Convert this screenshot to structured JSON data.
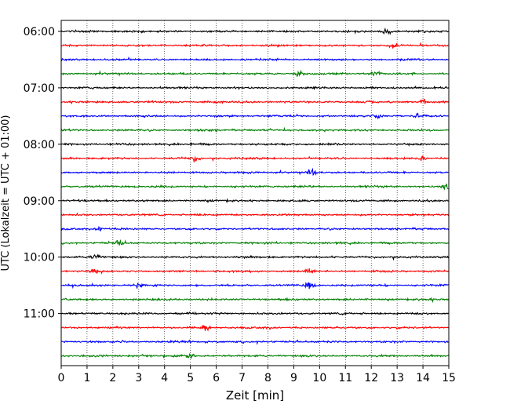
{
  "chart_data": {
    "type": "line",
    "title": "",
    "xlabel": "Zeit  [min]",
    "ylabel": "UTC (Lokalzeit = UTC + 01:00)",
    "xlim": [
      0,
      15
    ],
    "x_ticks": [
      0,
      1,
      2,
      3,
      4,
      5,
      6,
      7,
      8,
      9,
      10,
      11,
      12,
      13,
      14,
      15
    ],
    "y_ticks": [
      "06:00",
      "07:00",
      "08:00",
      "09:00",
      "10:00",
      "11:00"
    ],
    "grid": "vertical dotted",
    "trace_interval_minutes": 15,
    "trace_start": "06:00",
    "trace_count": 24,
    "color_cycle": [
      "#000000",
      "#ff0000",
      "#0000ff",
      "#008000"
    ],
    "notable_events": [
      {
        "trace": "06:00",
        "minute": 12.6
      },
      {
        "trace": "06:15",
        "minute": 12.9
      },
      {
        "trace": "06:45",
        "minute": 9.2
      },
      {
        "trace": "06:45",
        "minute": 12.2
      },
      {
        "trace": "07:15",
        "minute": 14.0
      },
      {
        "trace": "07:30",
        "minute": 12.2
      },
      {
        "trace": "07:30",
        "minute": 13.8
      },
      {
        "trace": "08:15",
        "minute": 5.2
      },
      {
        "trace": "08:15",
        "minute": 13.9
      },
      {
        "trace": "08:30",
        "minute": 9.7
      },
      {
        "trace": "08:45",
        "minute": 14.9
      },
      {
        "trace": "09:30",
        "minute": 1.5
      },
      {
        "trace": "09:45",
        "minute": 2.3
      },
      {
        "trace": "10:00",
        "minute": 1.3
      },
      {
        "trace": "10:15",
        "minute": 1.3
      },
      {
        "trace": "10:15",
        "minute": 9.6
      },
      {
        "trace": "10:30",
        "minute": 3.0
      },
      {
        "trace": "10:30",
        "minute": 9.6
      },
      {
        "trace": "11:15",
        "minute": 5.6
      },
      {
        "trace": "11:45",
        "minute": 5.0
      }
    ]
  }
}
